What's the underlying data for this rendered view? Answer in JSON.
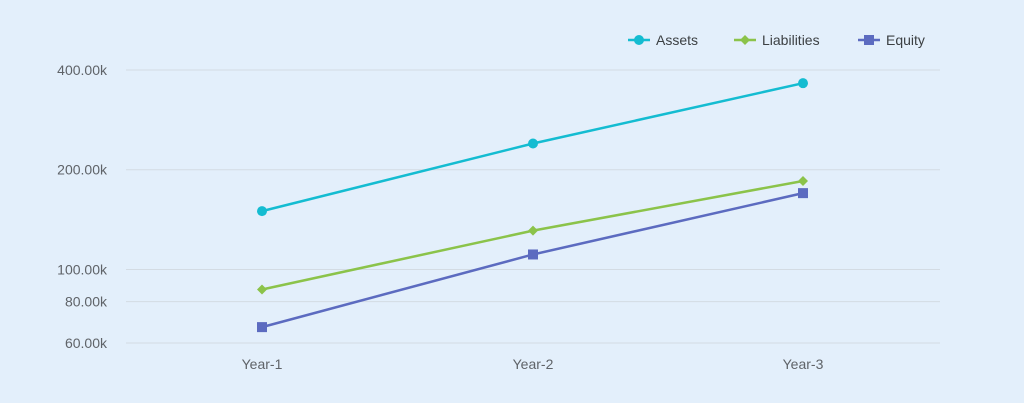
{
  "chart_data": {
    "type": "line",
    "y_scale": "log",
    "categories": [
      "Year-1",
      "Year-2",
      "Year-3"
    ],
    "y_ticks": [
      60000,
      80000,
      100000,
      200000,
      400000
    ],
    "y_tick_labels": [
      "60.00k",
      "80.00k",
      "100.00k",
      "200.00k",
      "400.00k"
    ],
    "ylim": [
      60000,
      400000
    ],
    "grid": true,
    "legend_position": "top-right",
    "series": [
      {
        "name": "Assets",
        "color": "#14bcd1",
        "marker": "circle",
        "values": [
          150000,
          240000,
          365000
        ]
      },
      {
        "name": "Liabilities",
        "color": "#8bc34a",
        "marker": "diamond",
        "values": [
          87000,
          131000,
          185000
        ]
      },
      {
        "name": "Equity",
        "color": "#5c6bc0",
        "marker": "square",
        "values": [
          67000,
          111000,
          170000
        ]
      }
    ]
  }
}
